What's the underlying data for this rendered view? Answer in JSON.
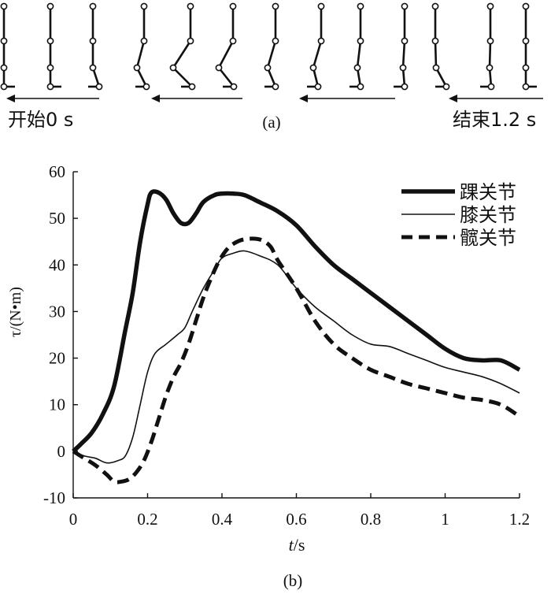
{
  "panel_a": {
    "label": "(a)",
    "start_label": "开始0 s",
    "end_label": "结束1.2 s",
    "frame_count": 13
  },
  "panel_b": {
    "label": "(b)"
  },
  "chart_data": {
    "type": "line",
    "title": "",
    "xlabel_italic": "t",
    "xlabel_unit": "/s",
    "ylabel": "τ/(N•m)",
    "xlim": [
      0,
      1.2
    ],
    "ylim": [
      -10,
      60
    ],
    "xticks": [
      0,
      0.2,
      0.4,
      0.6,
      0.8,
      1,
      1.2
    ],
    "xtick_labels": [
      "0",
      "0.2",
      "0.4",
      "0.6",
      "0.8",
      "1",
      "1.2"
    ],
    "yticks": [
      -10,
      0,
      10,
      20,
      30,
      40,
      50,
      60
    ],
    "ytick_labels": [
      "-10",
      "0",
      "10",
      "20",
      "30",
      "40",
      "50",
      "60"
    ],
    "grid": false,
    "legend_position": "top-right",
    "series": [
      {
        "name": "踝关节",
        "style": "thick-solid",
        "x": [
          0,
          0.02,
          0.05,
          0.08,
          0.11,
          0.14,
          0.16,
          0.18,
          0.2,
          0.21,
          0.23,
          0.25,
          0.27,
          0.29,
          0.31,
          0.33,
          0.35,
          0.38,
          0.4,
          0.43,
          0.46,
          0.5,
          0.55,
          0.6,
          0.65,
          0.7,
          0.75,
          0.8,
          0.85,
          0.9,
          0.95,
          1.0,
          1.05,
          1.1,
          1.15,
          1.2
        ],
        "values": [
          0,
          1.5,
          4,
          8,
          14,
          26,
          34,
          45,
          53,
          55.5,
          55.5,
          54,
          51,
          49,
          49,
          51,
          53.5,
          55,
          55.3,
          55.3,
          55,
          53.5,
          51.5,
          48.5,
          44,
          40,
          37,
          34,
          31,
          28,
          25,
          22,
          20,
          19.5,
          19.5,
          17.5
        ]
      },
      {
        "name": "膝关节",
        "style": "thin-solid",
        "x": [
          0,
          0.03,
          0.06,
          0.09,
          0.12,
          0.14,
          0.16,
          0.18,
          0.2,
          0.22,
          0.25,
          0.28,
          0.3,
          0.32,
          0.35,
          0.38,
          0.4,
          0.43,
          0.46,
          0.5,
          0.55,
          0.6,
          0.65,
          0.7,
          0.75,
          0.8,
          0.85,
          0.9,
          0.95,
          1.0,
          1.05,
          1.1,
          1.15,
          1.2
        ],
        "values": [
          0,
          -1,
          -1.5,
          -2.5,
          -2,
          -1,
          3,
          10,
          17,
          21,
          23,
          25,
          26.5,
          30,
          35,
          39,
          41.5,
          42.5,
          43,
          42,
          40,
          35,
          31,
          28,
          25,
          23,
          22.5,
          21,
          19.5,
          18,
          17,
          16,
          14.5,
          12.5
        ]
      },
      {
        "name": "髋关节",
        "style": "dashed",
        "x": [
          0,
          0.03,
          0.06,
          0.09,
          0.11,
          0.13,
          0.15,
          0.17,
          0.19,
          0.21,
          0.23,
          0.25,
          0.27,
          0.29,
          0.31,
          0.33,
          0.35,
          0.37,
          0.39,
          0.41,
          0.43,
          0.46,
          0.5,
          0.53,
          0.55,
          0.6,
          0.65,
          0.7,
          0.75,
          0.8,
          0.85,
          0.9,
          0.95,
          1.0,
          1.05,
          1.1,
          1.15,
          1.2
        ],
        "values": [
          0,
          -1.5,
          -3,
          -5,
          -6.5,
          -6.5,
          -6,
          -4.5,
          -2,
          2,
          7,
          12,
          16,
          19,
          23,
          28,
          33,
          37,
          40.5,
          43,
          44.5,
          45.5,
          45.5,
          44,
          41,
          35,
          28,
          23,
          20,
          17.5,
          16,
          14.5,
          13.5,
          12.5,
          11.5,
          11,
          10,
          7.5
        ]
      }
    ]
  }
}
